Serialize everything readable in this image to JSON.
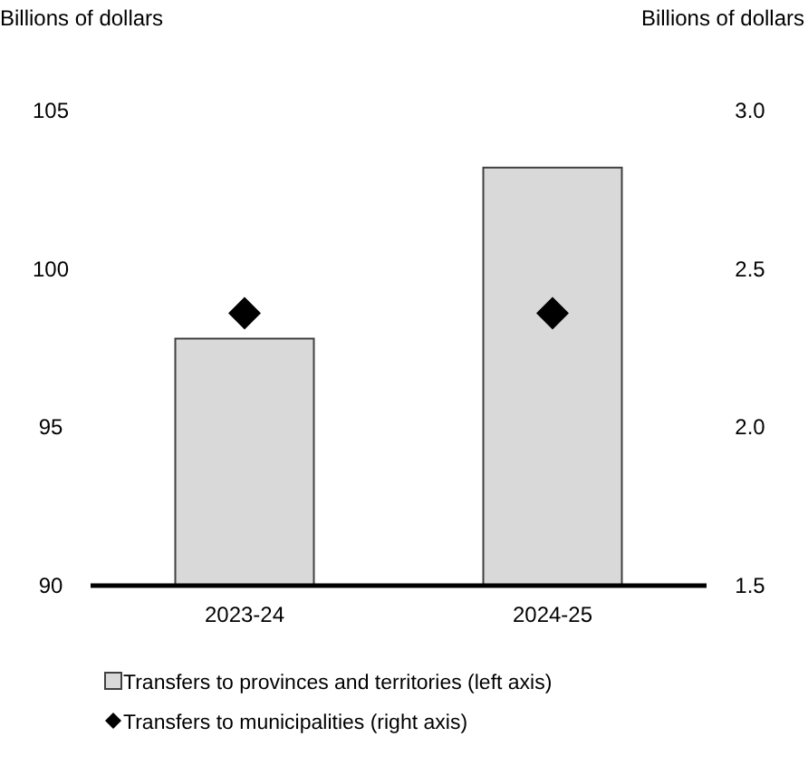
{
  "chart_data": {
    "type": "bar",
    "categories": [
      "2023-24",
      "2024-25"
    ],
    "ylabel": "Billions of dollars",
    "y2label": "Billions of dollars",
    "ylim": [
      90,
      105
    ],
    "yticks": [
      90,
      95,
      100,
      105
    ],
    "y2lim": [
      1.5,
      3.0
    ],
    "y2ticks": [
      {
        "value": 1.5,
        "label": "1.5"
      },
      {
        "value": 2.0,
        "label": "2.0"
      },
      {
        "value": 2.5,
        "label": "2.5"
      },
      {
        "value": 3.0,
        "label": "3.0"
      }
    ],
    "legend": "bottom",
    "grid": false,
    "series": [
      {
        "name": "Transfers to provinces and territories (left axis)",
        "color": "#d9d9d9",
        "values": [
          97.8,
          103.2
        ]
      },
      {
        "name": "Transfers to municipalities (right axis)",
        "type": "scatter",
        "axis": "y2",
        "marker": "diamond",
        "color": "#000000",
        "values": [
          2.36,
          2.36
        ]
      }
    ]
  }
}
